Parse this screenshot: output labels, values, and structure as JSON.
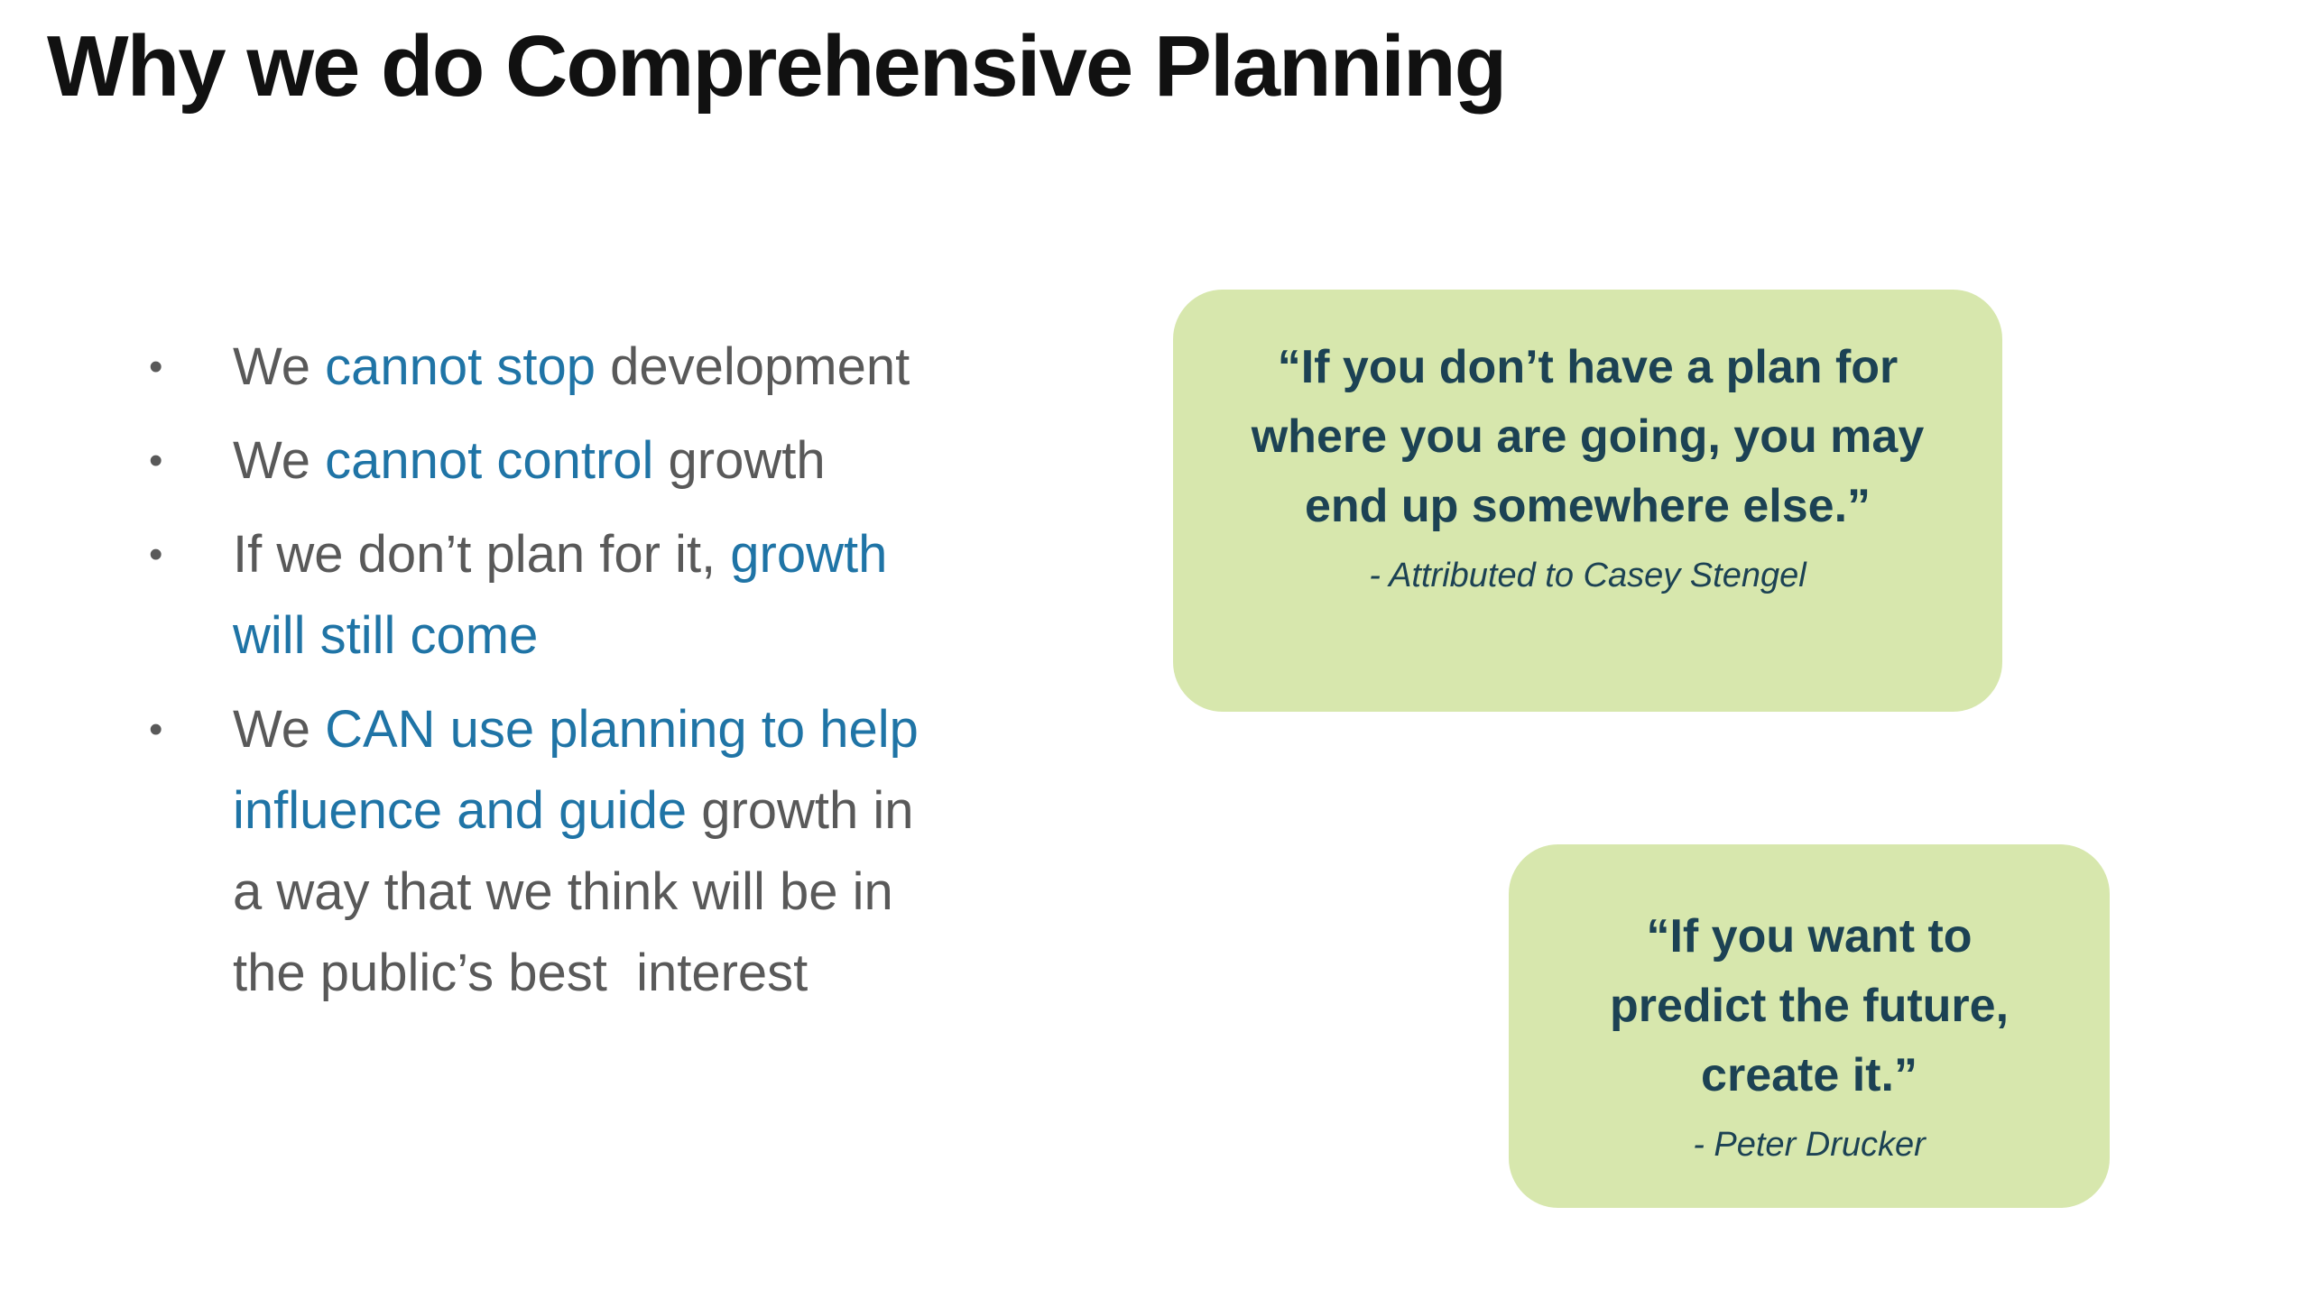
{
  "slide": {
    "title": "Why we do Comprehensive Planning",
    "bullet_char": "•",
    "colors": {
      "accent_teal": "#1f74a6",
      "body_gray": "#595959",
      "quote_bg": "#d7e7ad",
      "quote_text": "#1c4254",
      "title_black": "#111111"
    },
    "bullets": [
      {
        "segments": [
          {
            "text": "We ",
            "color": "gray"
          },
          {
            "text": "cannot stop",
            "color": "teal"
          },
          {
            "text": " development",
            "color": "gray"
          }
        ]
      },
      {
        "segments": [
          {
            "text": "We ",
            "color": "gray"
          },
          {
            "text": "cannot control",
            "color": "teal"
          },
          {
            "text": " growth",
            "color": "gray"
          }
        ]
      },
      {
        "segments": [
          {
            "text": "If we don’t plan for it, ",
            "color": "gray"
          },
          {
            "text": "growth\nwill still come",
            "color": "teal"
          }
        ]
      },
      {
        "segments": [
          {
            "text": "We ",
            "color": "gray"
          },
          {
            "text": "CAN use planning to help\ninfluence and guide",
            "color": "teal"
          },
          {
            "text": " growth in\na way that we think will be in\nthe public’s best  interest",
            "color": "gray"
          }
        ]
      }
    ],
    "quotes": [
      {
        "lines": [
          "“If you don’t have a plan for",
          "where you are going, you may",
          "end up somewhere else.”"
        ],
        "attribution": "- Attributed to Casey Stengel"
      },
      {
        "lines": [
          "“If you want to",
          "predict the future,",
          "create it.”"
        ],
        "attribution": "- Peter Drucker"
      }
    ]
  }
}
